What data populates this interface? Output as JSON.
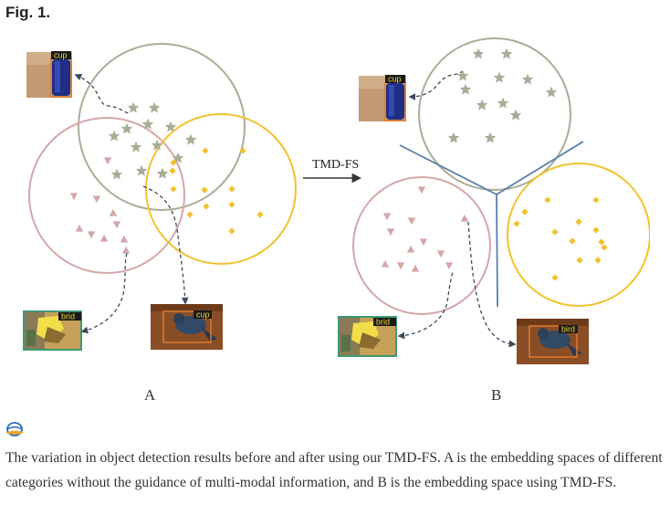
{
  "figure": {
    "label": "Fig. 1.",
    "arrow_label": "TMD-FS",
    "panel_a_label": "A",
    "panel_b_label": "B",
    "image_labels": {
      "a_cup": "cup",
      "a_bird_left": "brid",
      "a_bird_right": "cup",
      "b_cup": "cup",
      "b_bird_left": "brid",
      "b_bird_right": "bird"
    },
    "colors": {
      "cup_class": "#a8ae96",
      "bird_class": "#d4a7a7",
      "yellow_class": "#f2c22b",
      "separator": "#5b7fa6"
    }
  },
  "viewer_icon": "image-viewer-icon",
  "caption": "The variation in object detection results before and after using our TMD-FS. A is the embedding spaces of different categories without the guidance of multi-modal information, and B is the embedding space using TMD-FS."
}
